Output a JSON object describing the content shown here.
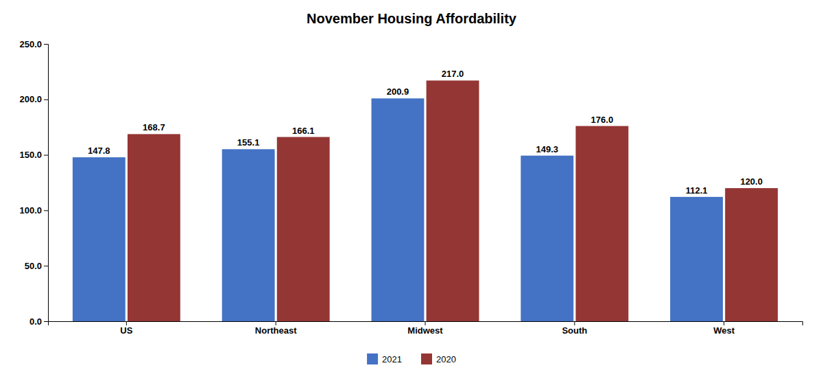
{
  "chart_data": {
    "type": "bar",
    "title": "November Housing Affordability",
    "categories": [
      "US",
      "Northeast",
      "Midwest",
      "South",
      "West"
    ],
    "series": [
      {
        "name": "2021",
        "color": "#4472C4",
        "values": [
          147.8,
          155.1,
          200.9,
          149.3,
          112.1
        ],
        "value_labels": [
          "147.8",
          "155.1",
          "200.9",
          "149.3",
          "112.1"
        ]
      },
      {
        "name": "2020",
        "color": "#943634",
        "values": [
          168.7,
          166.1,
          217.0,
          176.0,
          120.0
        ],
        "value_labels": [
          "168.7",
          "166.1",
          "217.0",
          "176.0",
          "120.0"
        ]
      }
    ],
    "ylim": [
      0,
      250
    ],
    "yticks": [
      {
        "value": 0,
        "label": "0.0"
      },
      {
        "value": 50,
        "label": "50.0"
      },
      {
        "value": 100,
        "label": "100.0"
      },
      {
        "value": 150,
        "label": "150.0"
      },
      {
        "value": 200,
        "label": "200.0"
      },
      {
        "value": 250,
        "label": "250.0"
      }
    ],
    "grid": false,
    "legend": "bottom",
    "data_labels": true
  }
}
